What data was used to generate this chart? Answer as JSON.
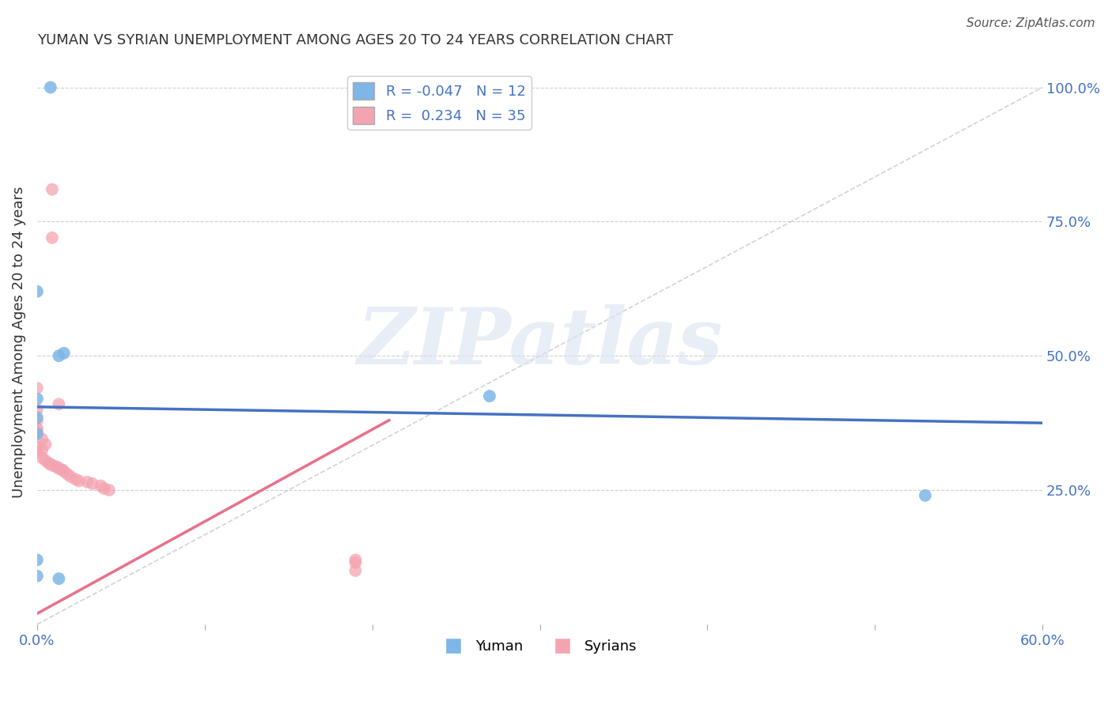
{
  "title": "YUMAN VS SYRIAN UNEMPLOYMENT AMONG AGES 20 TO 24 YEARS CORRELATION CHART",
  "source": "Source: ZipAtlas.com",
  "ylabel": "Unemployment Among Ages 20 to 24 years",
  "xlim": [
    0.0,
    0.6
  ],
  "ylim": [
    0.0,
    1.05
  ],
  "yticks": [
    0.0,
    0.25,
    0.5,
    0.75,
    1.0
  ],
  "xticks": [
    0.0,
    0.1,
    0.2,
    0.3,
    0.4,
    0.5,
    0.6
  ],
  "legend_r_yuman": "-0.047",
  "legend_n_yuman": "12",
  "legend_r_syrians": "0.234",
  "legend_n_syrians": "35",
  "color_yuman": "#7EB6E8",
  "color_syrians": "#F4A4B0",
  "color_yuman_line": "#4472C4",
  "color_syrians_line": "#E8708A",
  "watermark": "ZIPatlas",
  "yuman_points": [
    [
      0.008,
      1.0
    ],
    [
      0.0,
      0.62
    ],
    [
      0.013,
      0.5
    ],
    [
      0.016,
      0.505
    ],
    [
      0.27,
      0.425
    ],
    [
      0.0,
      0.385
    ],
    [
      0.0,
      0.42
    ],
    [
      0.53,
      0.24
    ],
    [
      0.0,
      0.355
    ],
    [
      0.0,
      0.12
    ],
    [
      0.0,
      0.09
    ],
    [
      0.013,
      0.085
    ]
  ],
  "syrians_points": [
    [
      0.009,
      0.81
    ],
    [
      0.009,
      0.72
    ],
    [
      0.0,
      0.44
    ],
    [
      0.013,
      0.41
    ],
    [
      0.0,
      0.4
    ],
    [
      0.0,
      0.38
    ],
    [
      0.0,
      0.365
    ],
    [
      0.0,
      0.36
    ],
    [
      0.0,
      0.355
    ],
    [
      0.003,
      0.345
    ],
    [
      0.005,
      0.335
    ],
    [
      0.0,
      0.33
    ],
    [
      0.003,
      0.325
    ],
    [
      0.0,
      0.32
    ],
    [
      0.003,
      0.31
    ],
    [
      0.005,
      0.305
    ],
    [
      0.007,
      0.3
    ],
    [
      0.008,
      0.298
    ],
    [
      0.01,
      0.295
    ],
    [
      0.012,
      0.293
    ],
    [
      0.013,
      0.29
    ],
    [
      0.015,
      0.288
    ],
    [
      0.016,
      0.285
    ],
    [
      0.018,
      0.28
    ],
    [
      0.02,
      0.275
    ],
    [
      0.023,
      0.27
    ],
    [
      0.025,
      0.267
    ],
    [
      0.03,
      0.265
    ],
    [
      0.033,
      0.262
    ],
    [
      0.038,
      0.258
    ],
    [
      0.04,
      0.253
    ],
    [
      0.043,
      0.25
    ],
    [
      0.19,
      0.12
    ],
    [
      0.19,
      0.115
    ],
    [
      0.19,
      0.1
    ]
  ],
  "yuman_line_x": [
    0.0,
    0.6
  ],
  "yuman_line_y": [
    0.405,
    0.375
  ],
  "syrians_line_x": [
    0.0,
    0.21
  ],
  "syrians_line_y": [
    0.02,
    0.38
  ],
  "diagonal_line_x": [
    0.0,
    0.6
  ],
  "diagonal_line_y": [
    0.0,
    1.0
  ]
}
